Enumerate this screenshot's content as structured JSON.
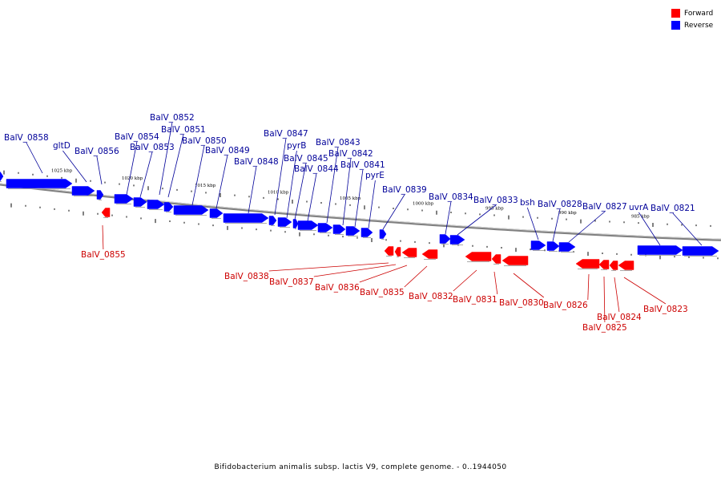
{
  "colors": {
    "forward": "#ff0000",
    "reverse": "#0000ff",
    "forward_label": "#cc0000",
    "reverse_label": "#000099",
    "backbone": "#808080"
  },
  "legend": {
    "forward_label": "Forward",
    "reverse_label": "Reverse"
  },
  "caption": "Bifidobacterium animalis subsp. lactis V9, complete genome. - 0..1944050",
  "kbp_labels": [
    "1025 kbp",
    "1020 kbp",
    "1015 kbp",
    "1010 kbp",
    "1005 kbp",
    "1000 kbp",
    "995 kbp",
    "990 kbp",
    "985 kbp"
  ],
  "reverse_genes": [
    "BalV_0858",
    "gltD",
    "BalV_0856",
    "BalV_0854",
    "BalV_0853",
    "BalV_0852",
    "BalV_0851",
    "BalV_0850",
    "BalV_0849",
    "BalV_0848",
    "BalV_0847",
    "pyrB",
    "BalV_0845",
    "BalV_0844",
    "BalV_0843",
    "BalV_0842",
    "BalV_0841",
    "pyrE",
    "BalV_0839",
    "BalV_0834",
    "BalV_0833",
    "bsh",
    "BalV_0828",
    "BalV_0827",
    "uvrA",
    "BalV_0821"
  ],
  "forward_genes": [
    "BalV_0855",
    "BalV_0838",
    "BalV_0837",
    "BalV_0836",
    "BalV_0835",
    "BalV_0832",
    "BalV_0831",
    "BalV_0830",
    "BalV_0826",
    "BalV_0825",
    "BalV_0824",
    "BalV_0823"
  ]
}
